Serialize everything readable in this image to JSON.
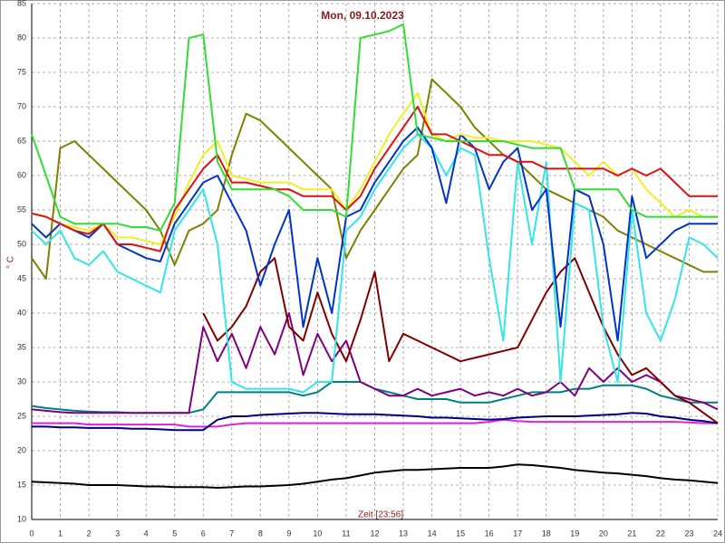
{
  "chart_data": {
    "type": "line",
    "title": "Mon, 09.10.2023",
    "xlabel": "Zeit [23:56]",
    "ylabel": "° C",
    "x": [
      0,
      0.5,
      1,
      1.5,
      2,
      2.5,
      3,
      3.5,
      4,
      4.5,
      5,
      5.5,
      6,
      6.5,
      7,
      7.5,
      8,
      8.5,
      9,
      9.5,
      10,
      10.5,
      11,
      11.5,
      12,
      12.5,
      13,
      13.5,
      14,
      14.5,
      15,
      15.5,
      16,
      16.5,
      17,
      17.5,
      18,
      18.5,
      19,
      19.5,
      20,
      20.5,
      21,
      21.5,
      22,
      22.5,
      23,
      23.5,
      24
    ],
    "xlim": [
      0,
      24
    ],
    "xticks": [
      0,
      1,
      2,
      3,
      4,
      5,
      6,
      7,
      8,
      9,
      10,
      11,
      12,
      13,
      14,
      15,
      16,
      17,
      18,
      19,
      20,
      21,
      22,
      23,
      24
    ],
    "ylim": [
      10,
      85
    ],
    "yticks": [
      10,
      15,
      20,
      25,
      30,
      35,
      40,
      45,
      50,
      55,
      60,
      65,
      70,
      75,
      80,
      85
    ],
    "grid": true,
    "series": [
      {
        "color": "#000000",
        "values": [
          15.5,
          15.4,
          15.3,
          15.2,
          15,
          15,
          15,
          14.9,
          14.8,
          14.8,
          14.7,
          14.7,
          14.7,
          14.6,
          14.7,
          14.8,
          14.8,
          14.9,
          15,
          15.2,
          15.5,
          15.8,
          16,
          16.4,
          16.8,
          17,
          17.2,
          17.2,
          17.3,
          17.4,
          17.5,
          17.5,
          17.5,
          17.7,
          18,
          17.9,
          17.7,
          17.5,
          17.2,
          17,
          16.8,
          16.7,
          16.5,
          16.3,
          16,
          15.8,
          15.7,
          15.5,
          15.3
        ]
      },
      {
        "color": "#e020e0",
        "values": [
          24,
          24,
          24,
          24,
          23.8,
          23.8,
          23.8,
          23.8,
          23.8,
          23.8,
          23.8,
          23.5,
          23.5,
          23.5,
          23.8,
          24,
          24,
          24,
          24,
          24,
          24,
          24,
          24,
          24,
          24,
          24,
          24,
          24,
          24,
          24,
          24,
          24,
          24.2,
          24.5,
          24.3,
          24.2,
          24.2,
          24.2,
          24.2,
          24.2,
          24.2,
          24.2,
          24.2,
          24.2,
          24.2,
          24.2,
          24.1,
          24,
          24
        ]
      },
      {
        "color": "#000080",
        "values": [
          23.5,
          23.5,
          23.4,
          23.4,
          23.3,
          23.3,
          23.3,
          23.2,
          23.2,
          23.1,
          23,
          23,
          23,
          24.5,
          25,
          25,
          25.2,
          25.3,
          25.4,
          25.5,
          25.5,
          25.4,
          25.3,
          25.3,
          25.3,
          25.2,
          25.1,
          25,
          24.8,
          24.8,
          24.7,
          24.6,
          24.5,
          24.6,
          24.8,
          24.9,
          25,
          25,
          25,
          25.1,
          25.2,
          25.3,
          25.5,
          25.4,
          25,
          24.8,
          24.5,
          24.3,
          24
        ]
      },
      {
        "color": "#008080",
        "values": [
          26.5,
          26.2,
          26,
          25.8,
          25.7,
          25.6,
          25.6,
          25.5,
          25.5,
          25.5,
          25.5,
          25.5,
          26,
          28.5,
          28.5,
          28.5,
          28.5,
          28.5,
          28.5,
          28,
          28.5,
          30,
          30,
          30,
          29,
          28.5,
          28,
          27.5,
          27.5,
          27.5,
          27,
          27,
          27,
          27.5,
          28,
          28.5,
          28.5,
          28.5,
          29,
          29,
          29.5,
          29.5,
          29.5,
          29,
          28,
          27.5,
          27,
          27,
          27
        ]
      },
      {
        "color": "#800080",
        "values": [
          26,
          25.8,
          25.6,
          25.5,
          25.5,
          25.5,
          25.5,
          25.5,
          25.5,
          25.5,
          25.5,
          25.5,
          38,
          33,
          37,
          32,
          38,
          34,
          40,
          31,
          37,
          33,
          36,
          30,
          29,
          28,
          28,
          29,
          28,
          28.5,
          29,
          28,
          28.5,
          28,
          29,
          28,
          28.5,
          30,
          28,
          32,
          30,
          32,
          30,
          31,
          30,
          28,
          27.5,
          27,
          26
        ]
      },
      {
        "color": "#800000",
        "values": [
          null,
          null,
          null,
          null,
          null,
          null,
          null,
          null,
          null,
          null,
          null,
          null,
          40,
          36,
          38,
          41,
          46,
          48,
          38,
          36,
          43,
          37,
          33,
          39,
          46,
          33,
          37,
          36,
          35,
          34,
          33,
          33.5,
          34,
          34.5,
          35,
          39,
          43,
          46,
          48,
          43,
          38,
          34,
          31,
          32,
          30,
          28,
          27,
          25.5,
          24
        ]
      },
      {
        "color": "#808000",
        "values": [
          48,
          45,
          64,
          65,
          63,
          61,
          59,
          57,
          55,
          52,
          47,
          52,
          53,
          55,
          63,
          69,
          68,
          66,
          64,
          62,
          60,
          58,
          48,
          52,
          55,
          58,
          61,
          63,
          74,
          72,
          70,
          67,
          65,
          63,
          62,
          60,
          58,
          57,
          56,
          55,
          54,
          52,
          51,
          50,
          49,
          48,
          47,
          46,
          46
        ]
      },
      {
        "color": "#33e6e6",
        "values": [
          52,
          50,
          52,
          48,
          47,
          49,
          46,
          45,
          44,
          43,
          52,
          55,
          58,
          50,
          30,
          29,
          29,
          29,
          29,
          28.5,
          30,
          30,
          52,
          54,
          58,
          61,
          64,
          66,
          64,
          60,
          64,
          63,
          48,
          36,
          62,
          50,
          62,
          30,
          56,
          55,
          38,
          30,
          55,
          40,
          36,
          42,
          51,
          50,
          48
        ]
      },
      {
        "color": "#0033cc",
        "values": [
          53,
          51,
          53,
          52,
          51,
          53,
          50,
          49,
          48,
          47.5,
          53,
          56,
          59,
          60,
          56,
          52,
          44,
          50,
          55,
          38,
          48,
          40,
          54,
          55,
          59,
          62,
          65,
          67,
          64,
          56,
          66,
          64,
          58,
          62,
          64,
          55,
          58,
          38,
          58,
          57,
          50,
          36,
          57,
          48,
          50,
          52,
          53,
          53,
          53
        ]
      },
      {
        "color": "#f0f020",
        "values": [
          54.5,
          54,
          53,
          52.5,
          52,
          53,
          51,
          51,
          50.5,
          50,
          54,
          59,
          63,
          65,
          60,
          59.5,
          59,
          59,
          59,
          58,
          58,
          58,
          55,
          58,
          62,
          66,
          69,
          72,
          66,
          65,
          66,
          65.5,
          65.5,
          65,
          65,
          65,
          64.5,
          64,
          62,
          60,
          62,
          60,
          61,
          58,
          56,
          54,
          55,
          54,
          54
        ]
      },
      {
        "color": "#dd1111",
        "values": [
          54.5,
          54,
          53,
          52,
          51.5,
          53,
          50,
          50,
          49.5,
          49,
          55,
          58,
          61,
          63,
          59,
          59,
          58.5,
          58,
          58,
          57,
          57,
          57,
          55,
          57,
          61,
          64,
          67,
          70,
          66,
          66,
          65,
          64,
          63,
          63,
          62,
          62,
          61,
          61,
          61,
          61,
          61,
          60,
          61,
          60,
          61,
          59,
          57,
          57,
          57
        ]
      },
      {
        "color": "#33dd33",
        "values": [
          66,
          60,
          54,
          53,
          53,
          53,
          53,
          52.5,
          52.5,
          52,
          56,
          80,
          80.5,
          62,
          58,
          58,
          58,
          58,
          57,
          55,
          55,
          55,
          54,
          80,
          80.5,
          81,
          82,
          66,
          65.5,
          65,
          65,
          65,
          65,
          65,
          64.5,
          64,
          64,
          64,
          58,
          58,
          58,
          58,
          55,
          54,
          54,
          54,
          54,
          54,
          54
        ]
      }
    ]
  }
}
